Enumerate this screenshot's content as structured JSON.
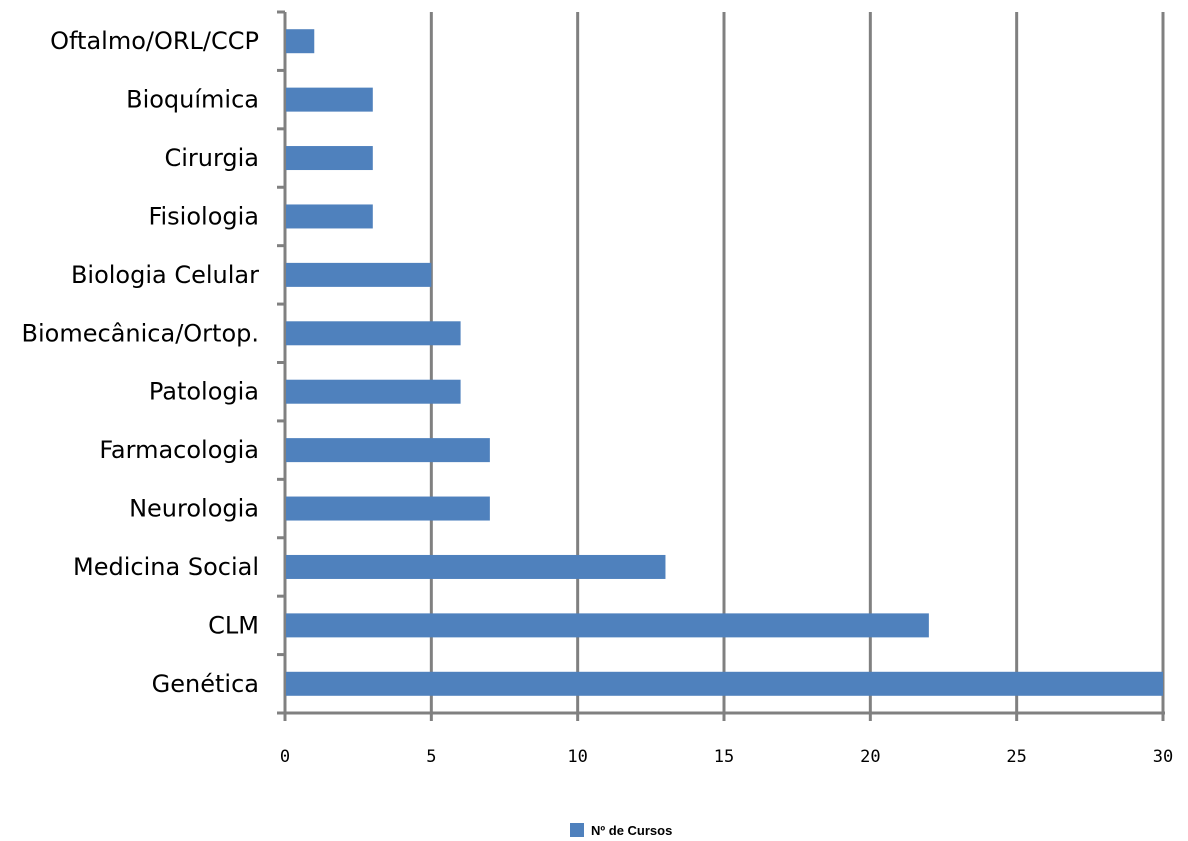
{
  "chart_data": {
    "type": "bar",
    "orientation": "horizontal",
    "categories": [
      "Oftalmo/ORL/CCP",
      "Bioquímica",
      "Cirurgia",
      "Fisiologia",
      "Biologia Celular",
      "Biomecânica/Ortop.",
      "Patologia",
      "Farmacologia",
      "Neurologia",
      "Medicina Social",
      "CLM",
      "Genética"
    ],
    "series": [
      {
        "name": "Nº de Cursos",
        "color": "#4f81bd",
        "values": [
          1,
          3,
          3,
          3,
          5,
          6,
          6,
          7,
          7,
          13,
          22,
          30
        ]
      }
    ],
    "xlim": [
      0,
      30
    ],
    "xticks": [
      "0",
      "5",
      "10",
      "15",
      "20",
      "25",
      "30"
    ],
    "grid": "vertical",
    "legend_position": "bottom"
  }
}
